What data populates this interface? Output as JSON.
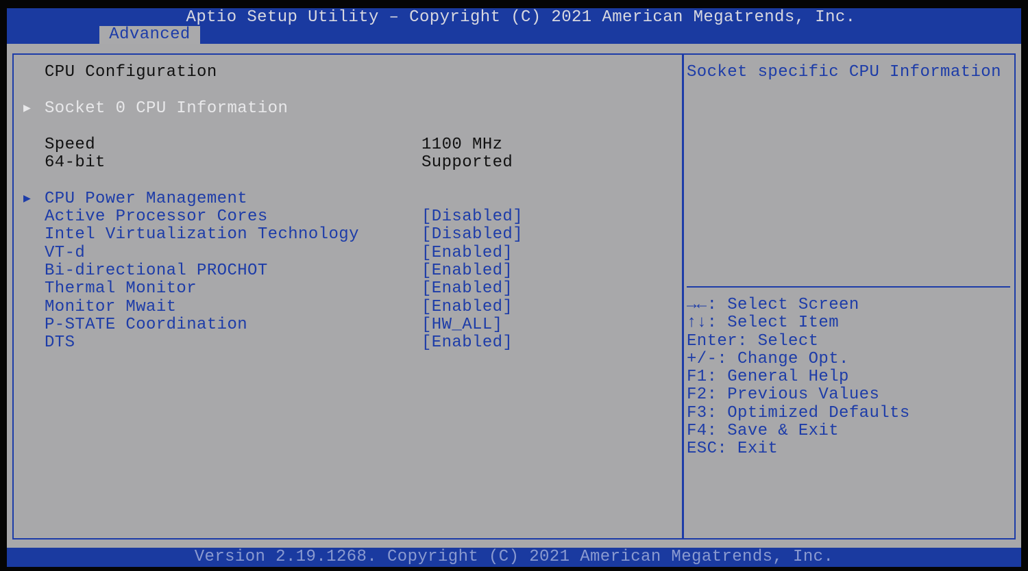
{
  "header": {
    "title": "Aptio Setup Utility – Copyright (C) 2021 American Megatrends, Inc.",
    "tab": "Advanced"
  },
  "main": {
    "heading": "CPU Configuration",
    "submenu1": "Socket 0 CPU Information",
    "info": [
      {
        "label": "Speed",
        "value": "1100 MHz"
      },
      {
        "label": "64-bit",
        "value": "Supported"
      }
    ],
    "submenu2": "CPU Power Management",
    "settings": [
      {
        "label": "Active Processor Cores",
        "value": "[Disabled]"
      },
      {
        "label": "Intel Virtualization Technology",
        "value": "[Disabled]"
      },
      {
        "label": "VT-d",
        "value": "[Enabled]"
      },
      {
        "label": "Bi-directional PROCHOT",
        "value": "[Enabled]"
      },
      {
        "label": "Thermal Monitor",
        "value": "[Enabled]"
      },
      {
        "label": "Monitor Mwait",
        "value": "[Enabled]"
      },
      {
        "label": "P-STATE Coordination",
        "value": "[HW_ALL]"
      },
      {
        "label": "DTS",
        "value": "[Enabled]"
      }
    ]
  },
  "help": {
    "text": "Socket specific CPU Information",
    "keys": [
      "→←: Select Screen",
      "↑↓: Select Item",
      "Enter: Select",
      "+/-: Change Opt.",
      "F1: General Help",
      "F2: Previous Values",
      "F3: Optimized Defaults",
      "F4: Save & Exit",
      "ESC: Exit"
    ]
  },
  "footer": {
    "text": "Version 2.19.1268. Copyright (C) 2021 American Megatrends, Inc."
  },
  "colors": {
    "blue": "#1a3aa0",
    "gray": "#a8a8aa",
    "selected": "#e8e8ea"
  }
}
